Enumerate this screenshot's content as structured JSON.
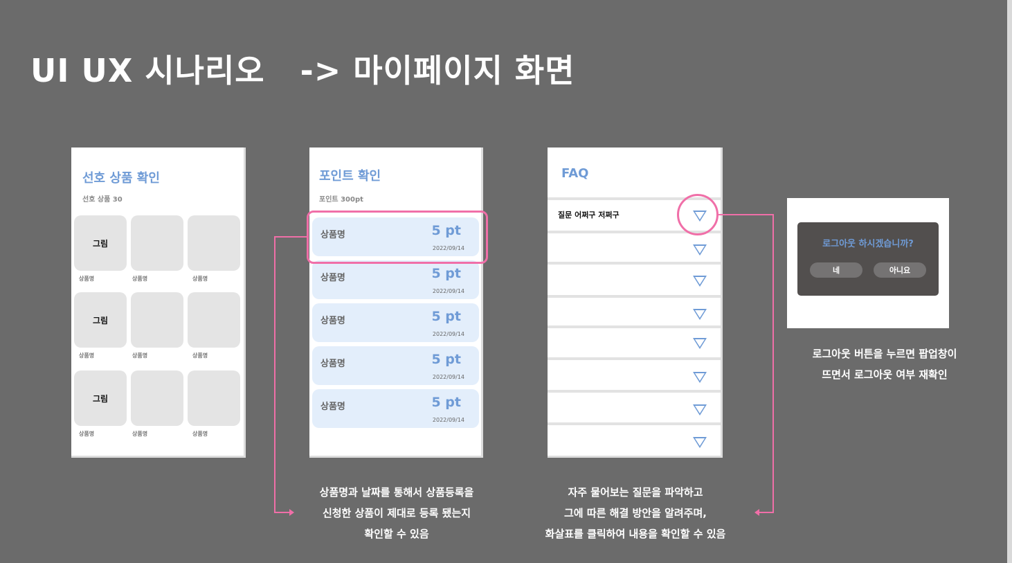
{
  "title": "UI UX 시나리오   -> 마이페이지 화면",
  "favorites": {
    "title": "선호 상품 확인",
    "subtitle": "선호 상품  30",
    "rows": [
      {
        "image_label": "그림",
        "items": [
          "상품명",
          "상품명",
          "상품명"
        ]
      },
      {
        "image_label": "그림",
        "items": [
          "상품명",
          "상품명",
          "상품명"
        ]
      },
      {
        "image_label": "그림",
        "items": [
          "상품명",
          "상품명",
          "상품명"
        ]
      }
    ]
  },
  "points": {
    "title": "포인트 확인",
    "subtitle": "포인트 300pt",
    "items": [
      {
        "name": "상품명",
        "points": "5 pt",
        "date": "2022/09/14"
      },
      {
        "name": "상품명",
        "points": "5 pt",
        "date": "2022/09/14"
      },
      {
        "name": "상품명",
        "points": "5 pt",
        "date": "2022/09/14"
      },
      {
        "name": "상품명",
        "points": "5 pt",
        "date": "2022/09/14"
      },
      {
        "name": "상품명",
        "points": "5 pt",
        "date": "2022/09/14"
      }
    ]
  },
  "faq": {
    "title": "FAQ",
    "first_question": "질문 어쩌구 저쩌구"
  },
  "logout_popup": {
    "question": "로그아웃 하시겠습니까?",
    "yes": "네",
    "no": "아니요"
  },
  "captions": {
    "points": [
      "상품명과 날짜를 통해서 상품등록을",
      "신청한 상품이 제대로 등록 됐는지",
      "확인할 수 있음"
    ],
    "faq": [
      "자주 물어보는 질문을 파악하고",
      "그에 따른 해결 방안을 알려주며,",
      "화살표를 클릭하여 내용을 확인할 수 있음"
    ],
    "logout": [
      "로그아웃 버튼을 누르면 팝업창이",
      "뜨면서 로그아웃 여부 재확인"
    ]
  },
  "colors": {
    "accent": "#6f9bd6",
    "highlight": "#f06fa8",
    "background": "#6b6b6b"
  }
}
